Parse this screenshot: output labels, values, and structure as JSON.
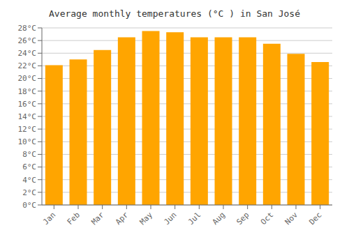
{
  "chart_data": {
    "type": "bar",
    "title": "Average monthly temperatures (°C ) in San José",
    "categories": [
      "Jan",
      "Feb",
      "Mar",
      "Apr",
      "May",
      "Jun",
      "Jul",
      "Aug",
      "Sep",
      "Oct",
      "Nov",
      "Dec"
    ],
    "values": [
      22.1,
      23.0,
      24.5,
      26.5,
      27.5,
      27.3,
      26.5,
      26.5,
      26.5,
      25.5,
      23.9,
      22.6
    ],
    "color": "#FFA500",
    "ylim": [
      0,
      28
    ],
    "yticks": [
      {
        "value": 0,
        "label": "0°C"
      },
      {
        "value": 2,
        "label": "2°C"
      },
      {
        "value": 4,
        "label": "4°C"
      },
      {
        "value": 6,
        "label": "6°C"
      },
      {
        "value": 8,
        "label": "8°C"
      },
      {
        "value": 10,
        "label": "10°C"
      },
      {
        "value": 12,
        "label": "12°C"
      },
      {
        "value": 14,
        "label": "14°C"
      },
      {
        "value": 16,
        "label": "16°C"
      },
      {
        "value": 18,
        "label": "18°C"
      },
      {
        "value": 20,
        "label": "20°C"
      },
      {
        "value": 22,
        "label": "22°C"
      },
      {
        "value": 24,
        "label": "24°C"
      },
      {
        "value": 26,
        "label": "26°C"
      },
      {
        "value": 28,
        "label": "28°C"
      }
    ],
    "grid": true
  }
}
